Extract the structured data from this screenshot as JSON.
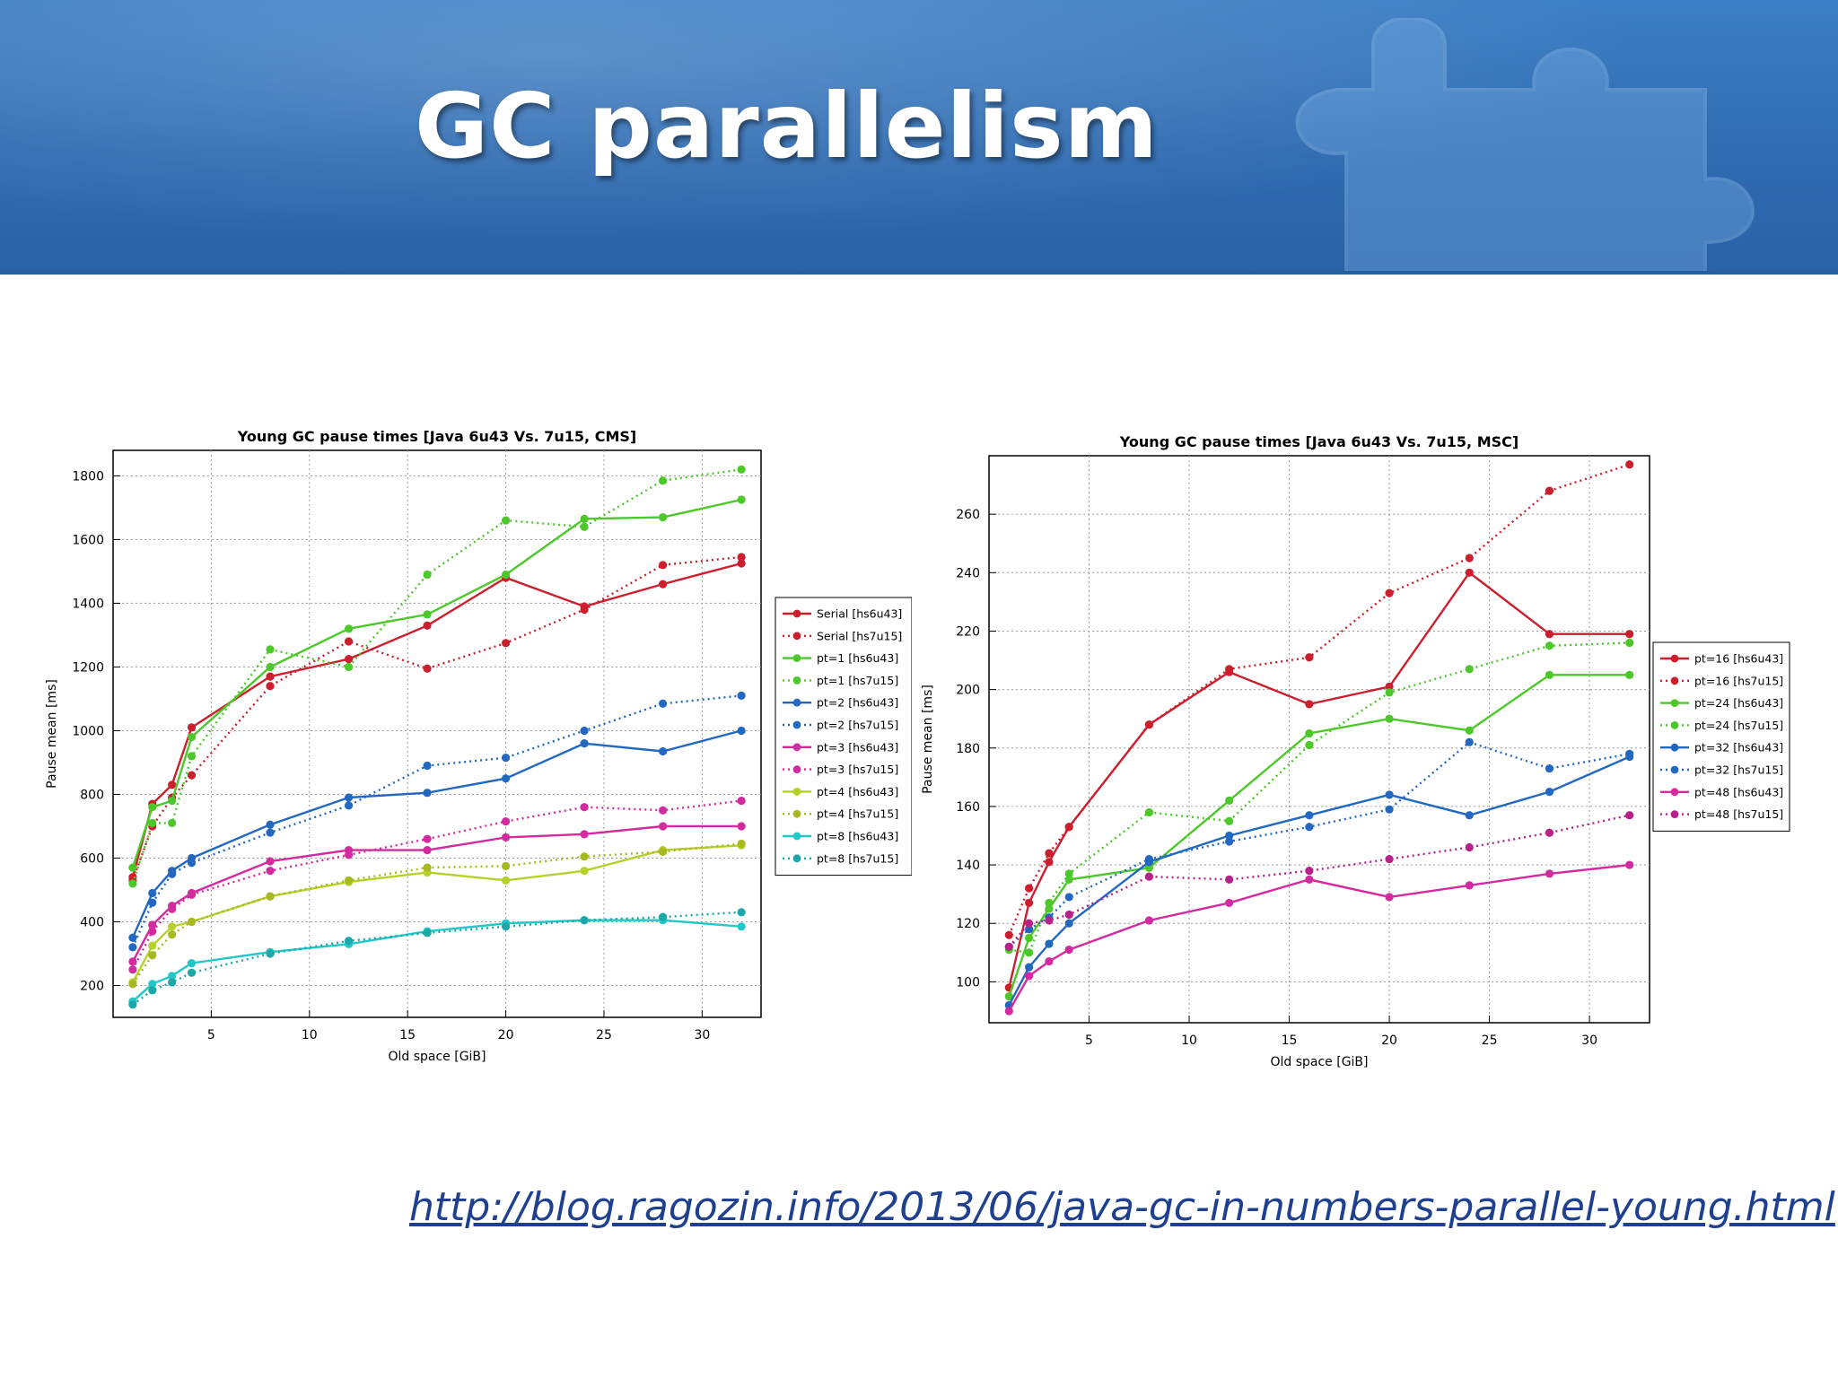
{
  "slide": {
    "title": "GC parallelism",
    "link": "http://blog.ragozin.info/2013/06/java-gc-in-numbers-parallel-young.html"
  },
  "colors": {
    "header_top": "#3d7fc4",
    "header_bottom": "#2a62a6",
    "link": "#1f3f8f"
  },
  "chart_data": [
    {
      "type": "line",
      "title": "Young GC pause times [Java 6u43 Vs. 7u15, CMS]",
      "xlabel": "Old space [GiB]",
      "ylabel": "Pause mean [ms]",
      "xlim": [
        0,
        33
      ],
      "ylim": [
        100,
        1880
      ],
      "xticks": [
        5,
        10,
        15,
        20,
        25,
        30
      ],
      "yticks": [
        200,
        400,
        600,
        800,
        1000,
        1200,
        1400,
        1600,
        1800
      ],
      "grid": true,
      "legend": "right",
      "x": [
        1,
        2,
        3,
        4,
        8,
        12,
        16,
        20,
        24,
        28,
        32
      ],
      "series": [
        {
          "name": "Serial [hs6u43]",
          "color": "#cc1f2e",
          "dashed": false,
          "values": [
            540,
            770,
            830,
            1010,
            1170,
            1225,
            1330,
            1480,
            1390,
            1460,
            1525
          ]
        },
        {
          "name": "Serial [hs7u15]",
          "color": "#cc1f2e",
          "dashed": true,
          "values": [
            530,
            700,
            790,
            860,
            1140,
            1280,
            1195,
            1275,
            1380,
            1520,
            1545
          ]
        },
        {
          "name": "pt=1 [hs6u43]",
          "color": "#4cc82a",
          "dashed": false,
          "values": [
            570,
            760,
            780,
            980,
            1200,
            1320,
            1365,
            1490,
            1665,
            1670,
            1725
          ]
        },
        {
          "name": "pt=1 [hs7u15]",
          "color": "#4cc82a",
          "dashed": true,
          "values": [
            520,
            710,
            710,
            920,
            1255,
            1200,
            1490,
            1660,
            1640,
            1785,
            1820
          ]
        },
        {
          "name": "pt=2 [hs6u43]",
          "color": "#2268c0",
          "dashed": false,
          "values": [
            350,
            490,
            560,
            600,
            705,
            790,
            805,
            850,
            960,
            935,
            1000
          ]
        },
        {
          "name": "pt=2 [hs7u15]",
          "color": "#2268c0",
          "dashed": true,
          "values": [
            320,
            460,
            550,
            585,
            680,
            765,
            890,
            915,
            1000,
            1085,
            1110
          ]
        },
        {
          "name": "pt=3 [hs6u43]",
          "color": "#d42aa0",
          "dashed": false,
          "values": [
            275,
            390,
            450,
            490,
            590,
            625,
            625,
            665,
            675,
            700,
            700
          ]
        },
        {
          "name": "pt=3 [hs7u15]",
          "color": "#d42aa0",
          "dashed": true,
          "values": [
            250,
            370,
            440,
            485,
            560,
            610,
            660,
            715,
            760,
            750,
            780
          ]
        },
        {
          "name": "pt=4 [hs6u43]",
          "color": "#b8d02a",
          "dashed": false,
          "values": [
            210,
            325,
            385,
            400,
            480,
            525,
            555,
            530,
            560,
            625,
            640
          ]
        },
        {
          "name": "pt=4 [hs7u15]",
          "color": "#a8b820",
          "dashed": true,
          "values": [
            205,
            295,
            360,
            400,
            480,
            530,
            570,
            575,
            605,
            620,
            645
          ]
        },
        {
          "name": "pt=8 [hs6u43]",
          "color": "#22c8c8",
          "dashed": false,
          "values": [
            150,
            205,
            230,
            270,
            305,
            330,
            370,
            395,
            405,
            405,
            385
          ]
        },
        {
          "name": "pt=8 [hs7u15]",
          "color": "#1aa8a8",
          "dashed": true,
          "values": [
            140,
            185,
            210,
            240,
            300,
            340,
            365,
            385,
            405,
            415,
            430
          ]
        }
      ]
    },
    {
      "type": "line",
      "title": "Young GC pause times [Java 6u43 Vs. 7u15, MSC]",
      "xlabel": "Old space [GiB]",
      "ylabel": "Pause mean [ms]",
      "xlim": [
        0,
        33
      ],
      "ylim": [
        86,
        280
      ],
      "xticks": [
        5,
        10,
        15,
        20,
        25,
        30
      ],
      "yticks": [
        100,
        120,
        140,
        160,
        180,
        200,
        220,
        240,
        260
      ],
      "grid": true,
      "legend": "right",
      "x": [
        1,
        2,
        3,
        4,
        8,
        12,
        16,
        20,
        24,
        28,
        32
      ],
      "series": [
        {
          "name": "pt=16 [hs6u43]",
          "color": "#cc1f2e",
          "dashed": false,
          "values": [
            98,
            127,
            141,
            153,
            188,
            206,
            195,
            201,
            240,
            219,
            219
          ]
        },
        {
          "name": "pt=16 [hs7u15]",
          "color": "#cc1f2e",
          "dashed": true,
          "values": [
            116,
            132,
            144,
            153,
            188,
            207,
            211,
            233,
            245,
            268,
            277
          ]
        },
        {
          "name": "pt=24 [hs6u43]",
          "color": "#4cc82a",
          "dashed": false,
          "values": [
            95,
            115,
            125,
            135,
            139,
            162,
            185,
            190,
            186,
            205,
            205
          ]
        },
        {
          "name": "pt=24 [hs7u15]",
          "color": "#4cc82a",
          "dashed": true,
          "values": [
            111,
            110,
            127,
            137,
            158,
            155,
            181,
            199,
            207,
            215,
            216
          ]
        },
        {
          "name": "pt=32 [hs6u43]",
          "color": "#2268c0",
          "dashed": false,
          "values": [
            92,
            105,
            113,
            120,
            141,
            150,
            157,
            164,
            157,
            165,
            177
          ]
        },
        {
          "name": "pt=32 [hs7u15]",
          "color": "#2268c0",
          "dashed": true,
          "values": [
            112,
            118,
            122,
            129,
            142,
            148,
            153,
            159,
            182,
            173,
            178
          ]
        },
        {
          "name": "pt=48 [hs6u43]",
          "color": "#d42aa0",
          "dashed": false,
          "values": [
            90,
            102,
            107,
            111,
            121,
            127,
            135,
            129,
            133,
            137,
            140
          ]
        },
        {
          "name": "pt=48 [hs7u15]",
          "color": "#b8208a",
          "dashed": true,
          "values": [
            112,
            120,
            121,
            123,
            136,
            135,
            138,
            142,
            146,
            151,
            157
          ]
        }
      ]
    }
  ]
}
